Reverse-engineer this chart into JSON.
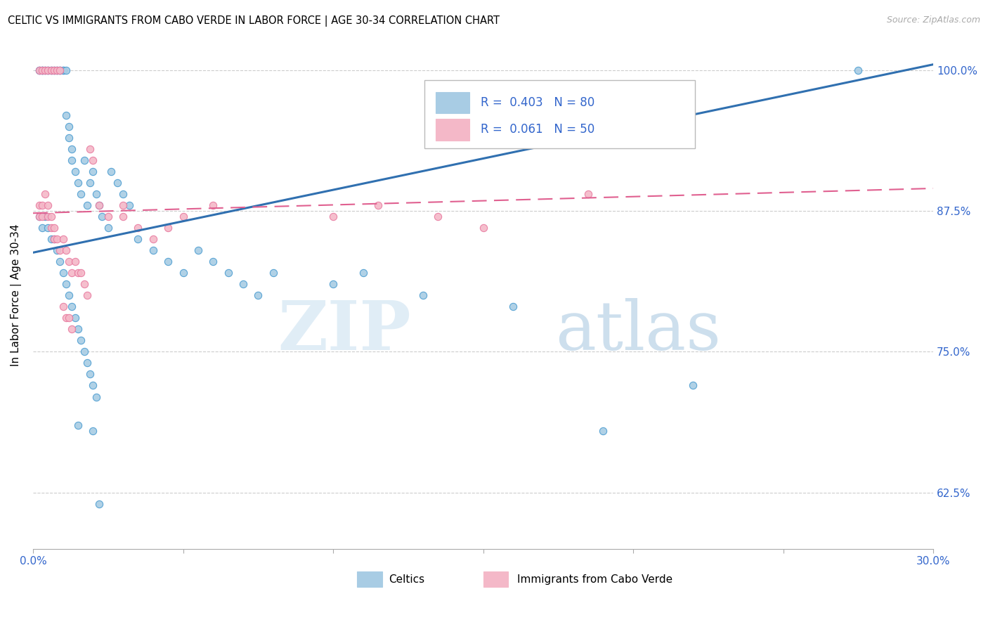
{
  "title": "CELTIC VS IMMIGRANTS FROM CABO VERDE IN LABOR FORCE | AGE 30-34 CORRELATION CHART",
  "source": "Source: ZipAtlas.com",
  "ylabel": "In Labor Force | Age 30-34",
  "xlim": [
    0.0,
    0.3
  ],
  "ylim": [
    0.575,
    1.025
  ],
  "ytick_positions": [
    0.625,
    0.75,
    0.875,
    1.0
  ],
  "ytick_labels": [
    "62.5%",
    "75.0%",
    "87.5%",
    "100.0%"
  ],
  "blue_fill": "#a8cce4",
  "blue_edge": "#4d9dd1",
  "pink_fill": "#f4b8c8",
  "pink_edge": "#e87aa0",
  "blue_line_color": "#3070b0",
  "pink_line_color": "#e06090",
  "text_color": "#3366cc",
  "legend_label_blue": "Celtics",
  "legend_label_pink": "Immigrants from Cabo Verde",
  "blue_trend_x0": 0.0,
  "blue_trend_y0": 0.838,
  "blue_trend_x1": 0.3,
  "blue_trend_y1": 1.005,
  "pink_trend_x0": 0.0,
  "pink_trend_y0": 0.873,
  "pink_trend_x1": 0.3,
  "pink_trend_y1": 0.895,
  "blue_x": [
    0.002,
    0.002,
    0.003,
    0.003,
    0.003,
    0.004,
    0.004,
    0.005,
    0.005,
    0.006,
    0.006,
    0.007,
    0.007,
    0.008,
    0.008,
    0.009,
    0.009,
    0.01,
    0.01,
    0.011,
    0.011,
    0.012,
    0.012,
    0.013,
    0.013,
    0.014,
    0.015,
    0.016,
    0.017,
    0.018,
    0.019,
    0.02,
    0.021,
    0.022,
    0.023,
    0.025,
    0.026,
    0.028,
    0.03,
    0.032,
    0.002,
    0.003,
    0.004,
    0.005,
    0.006,
    0.007,
    0.008,
    0.009,
    0.01,
    0.011,
    0.012,
    0.013,
    0.014,
    0.015,
    0.016,
    0.017,
    0.018,
    0.019,
    0.02,
    0.021,
    0.035,
    0.04,
    0.045,
    0.05,
    0.055,
    0.06,
    0.065,
    0.07,
    0.075,
    0.08,
    0.1,
    0.11,
    0.13,
    0.16,
    0.19,
    0.22,
    0.015,
    0.02,
    0.275,
    0.022
  ],
  "blue_y": [
    1.0,
    1.0,
    1.0,
    1.0,
    1.0,
    1.0,
    1.0,
    1.0,
    1.0,
    1.0,
    1.0,
    1.0,
    1.0,
    1.0,
    1.0,
    1.0,
    1.0,
    1.0,
    1.0,
    1.0,
    0.96,
    0.95,
    0.94,
    0.93,
    0.92,
    0.91,
    0.9,
    0.89,
    0.92,
    0.88,
    0.9,
    0.91,
    0.89,
    0.88,
    0.87,
    0.86,
    0.91,
    0.9,
    0.89,
    0.88,
    0.87,
    0.86,
    0.87,
    0.86,
    0.85,
    0.85,
    0.84,
    0.83,
    0.82,
    0.81,
    0.8,
    0.79,
    0.78,
    0.77,
    0.76,
    0.75,
    0.74,
    0.73,
    0.72,
    0.71,
    0.85,
    0.84,
    0.83,
    0.82,
    0.84,
    0.83,
    0.82,
    0.81,
    0.8,
    0.82,
    0.81,
    0.82,
    0.8,
    0.79,
    0.68,
    0.72,
    0.685,
    0.68,
    1.0,
    0.615
  ],
  "pink_x": [
    0.002,
    0.002,
    0.003,
    0.003,
    0.004,
    0.005,
    0.005,
    0.006,
    0.006,
    0.007,
    0.007,
    0.008,
    0.009,
    0.01,
    0.011,
    0.012,
    0.013,
    0.014,
    0.015,
    0.016,
    0.017,
    0.018,
    0.019,
    0.02,
    0.022,
    0.025,
    0.03,
    0.035,
    0.04,
    0.045,
    0.002,
    0.003,
    0.004,
    0.005,
    0.006,
    0.007,
    0.008,
    0.009,
    0.01,
    0.011,
    0.012,
    0.013,
    0.03,
    0.05,
    0.06,
    0.1,
    0.115,
    0.135,
    0.15,
    0.185
  ],
  "pink_y": [
    0.88,
    0.87,
    0.88,
    0.87,
    0.89,
    0.88,
    0.87,
    0.87,
    0.86,
    0.86,
    0.85,
    0.85,
    0.84,
    0.85,
    0.84,
    0.83,
    0.82,
    0.83,
    0.82,
    0.82,
    0.81,
    0.8,
    0.93,
    0.92,
    0.88,
    0.87,
    0.88,
    0.86,
    0.85,
    0.86,
    1.0,
    1.0,
    1.0,
    1.0,
    1.0,
    1.0,
    1.0,
    1.0,
    0.79,
    0.78,
    0.78,
    0.77,
    0.87,
    0.87,
    0.88,
    0.87,
    0.88,
    0.87,
    0.86,
    0.89
  ]
}
